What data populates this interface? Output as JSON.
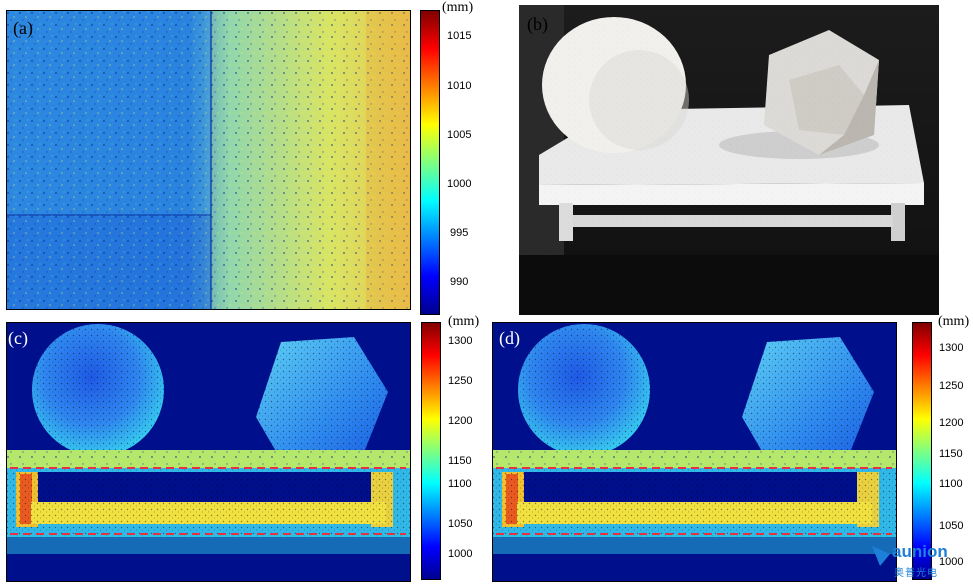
{
  "panels": {
    "a": {
      "label": "(a)"
    },
    "b": {
      "label": "(b)"
    },
    "c": {
      "label": "(c)"
    },
    "d": {
      "label": "(d)"
    }
  },
  "colorbar_top": {
    "unit": "(mm)",
    "ticks": [
      "1015",
      "1010",
      "1005",
      "1000",
      "995",
      "990"
    ]
  },
  "colorbar_c": {
    "unit": "(mm)",
    "ticks": [
      "1300",
      "1250",
      "1200",
      "1150",
      "1100",
      "1050",
      "1000"
    ]
  },
  "colorbar_d": {
    "unit": "(mm)",
    "ticks": [
      "1300",
      "1250",
      "1200",
      "1150",
      "1100",
      "1050",
      "1000"
    ]
  },
  "watermark": {
    "brand": "aunion",
    "sub": "奥普光电"
  },
  "colors": {
    "background": "#000f8c",
    "jet_low": "#00008f",
    "jet_high": "#800000"
  }
}
